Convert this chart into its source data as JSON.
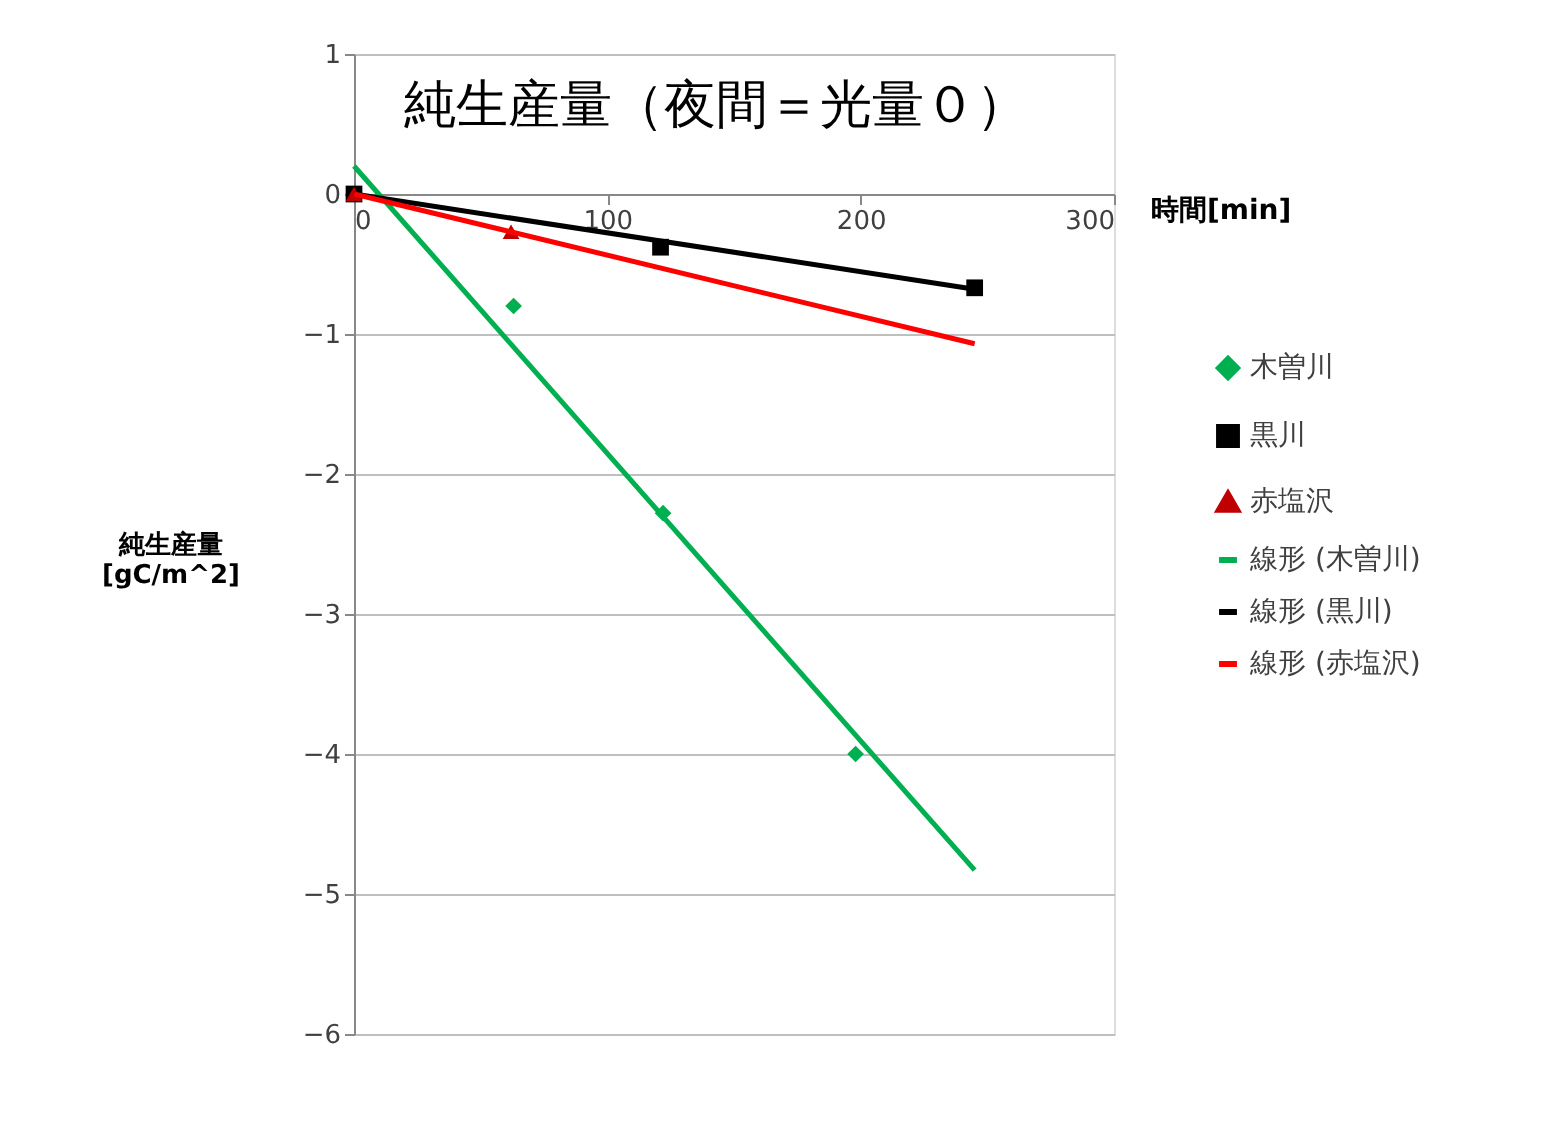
{
  "chart_data": {
    "type": "scatter",
    "title": "純生産量（夜間＝光量０）",
    "xlabel": "時間[min]",
    "ylabel": "純生産量\n[gC/m^2]",
    "xlim": [
      0,
      300
    ],
    "xticks": [
      0,
      100,
      200,
      300
    ],
    "ylim": [
      -6,
      1
    ],
    "yticks": [
      -6,
      -5,
      -4,
      -3,
      -2,
      -1,
      0,
      1
    ],
    "grid": "y",
    "legend": "right",
    "series": [
      {
        "name": "木曽川",
        "marker": "diamond",
        "color": "#00b050",
        "x": [
          63,
          122,
          198
        ],
        "values": [
          -0.8,
          -2.28,
          -4.0
        ]
      },
      {
        "name": "黒川",
        "marker": "square",
        "color": "#000000",
        "x": [
          0,
          121,
          245
        ],
        "values": [
          0,
          -0.38,
          -0.67
        ]
      },
      {
        "name": "赤塩沢",
        "marker": "triangle",
        "color": "#c00000",
        "x": [
          0,
          62
        ],
        "values": [
          0,
          -0.27
        ]
      },
      {
        "name": "線形 (木曽川)",
        "type": "line",
        "marker": "none",
        "line_style": "solid",
        "color": "#00b050",
        "x": [
          0,
          245
        ],
        "values": [
          0.2,
          -4.83
        ]
      },
      {
        "name": "線形 (黒川)",
        "type": "line",
        "marker": "none",
        "line_style": "solid",
        "color": "#000000",
        "x": [
          0,
          245
        ],
        "values": [
          0.0,
          -0.68
        ]
      },
      {
        "name": "線形 (赤塩沢)",
        "type": "line",
        "marker": "none",
        "line_style": "solid",
        "color": "#ff0000",
        "x": [
          0,
          245
        ],
        "values": [
          0.0,
          -1.07
        ]
      }
    ]
  }
}
